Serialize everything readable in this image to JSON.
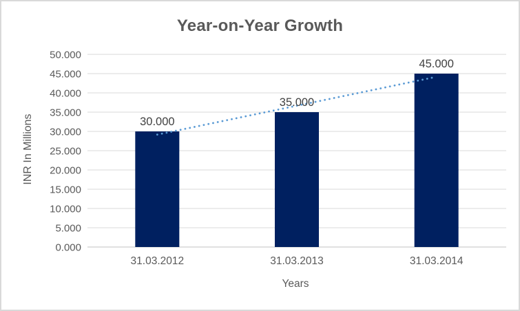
{
  "window": {
    "background": "#FFFFFF",
    "border_color": "#D9D9D9"
  },
  "chart_data": {
    "type": "bar",
    "title": "Year-on-Year Growth",
    "categories": [
      "31.03.2012",
      "31.03.2013",
      "31.03.2014"
    ],
    "values": [
      30.0,
      35.0,
      45.0
    ],
    "data_labels": [
      "30.000",
      "35.000",
      "45.000"
    ],
    "xlabel": "Years",
    "ylabel": "INR In Millions",
    "ylim": [
      0,
      50
    ],
    "ytick_step": 5,
    "ytick_labels": [
      "0.000",
      "5.000",
      "10.000",
      "15.000",
      "20.000",
      "25.000",
      "30.000",
      "35.000",
      "40.000",
      "45.000",
      "50.000"
    ],
    "grid": true,
    "legend": "none",
    "bar_color": "#002060",
    "trendline": {
      "type": "linear",
      "style": "dotted",
      "color": "#5B9BD5",
      "endpoint_values": [
        29.17,
        44.17
      ]
    },
    "colors": {
      "title_text": "#595959",
      "axis_text": "#595959",
      "data_label_text": "#404040",
      "gridline": "#D9D9D9",
      "axis_line": "#C0C0C0"
    }
  }
}
